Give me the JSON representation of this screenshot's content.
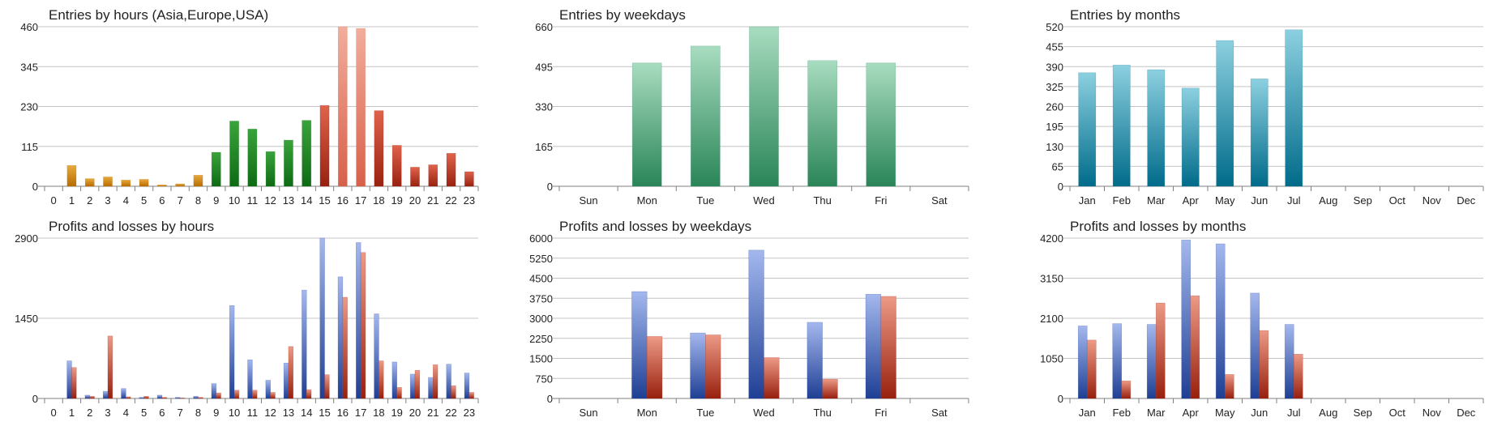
{
  "chart_data": [
    {
      "id": "entries_hours",
      "type": "bar",
      "title": "Entries by hours (Asia,Europe,USA)",
      "categories": [
        "0",
        "1",
        "2",
        "3",
        "4",
        "5",
        "6",
        "7",
        "8",
        "9",
        "10",
        "11",
        "12",
        "13",
        "14",
        "15",
        "16",
        "17",
        "18",
        "19",
        "20",
        "21",
        "22",
        "23"
      ],
      "values": [
        0,
        60,
        22,
        27,
        18,
        20,
        4,
        7,
        32,
        98,
        188,
        165,
        100,
        133,
        190,
        233,
        460,
        455,
        218,
        118,
        55,
        62,
        95,
        42
      ],
      "region_colors": [
        "asia",
        "asia",
        "asia",
        "asia",
        "asia",
        "asia",
        "asia",
        "asia",
        "asia",
        "europe",
        "europe",
        "europe",
        "europe",
        "europe",
        "europe",
        "usa",
        "usa",
        "usa",
        "usa",
        "usa",
        "usa",
        "usa",
        "usa",
        "usa"
      ],
      "yticks": [
        0,
        115,
        230,
        345,
        460
      ],
      "ylim": [
        0,
        460
      ],
      "grid": true
    },
    {
      "id": "entries_weekdays",
      "type": "bar",
      "title": "Entries by weekdays",
      "categories": [
        "Sun",
        "Mon",
        "Tue",
        "Wed",
        "Thu",
        "Fri",
        "Sat"
      ],
      "values": [
        0,
        510,
        580,
        660,
        520,
        510,
        0
      ],
      "yticks": [
        0,
        165,
        330,
        495,
        660
      ],
      "ylim": [
        0,
        660
      ],
      "grid": true
    },
    {
      "id": "entries_months",
      "type": "bar",
      "title": "Entries by months",
      "categories": [
        "Jan",
        "Feb",
        "Mar",
        "Apr",
        "May",
        "Jun",
        "Jul",
        "Aug",
        "Sep",
        "Oct",
        "Nov",
        "Dec"
      ],
      "values": [
        370,
        395,
        380,
        320,
        475,
        350,
        510,
        0,
        0,
        0,
        0,
        0
      ],
      "yticks": [
        0,
        65,
        130,
        195,
        260,
        325,
        390,
        455,
        520
      ],
      "ylim": [
        0,
        520
      ],
      "grid": true
    },
    {
      "id": "pl_hours",
      "type": "bar",
      "title": "Profits and losses by hours",
      "categories": [
        "0",
        "1",
        "2",
        "3",
        "4",
        "5",
        "6",
        "7",
        "8",
        "9",
        "10",
        "11",
        "12",
        "13",
        "14",
        "15",
        "16",
        "17",
        "18",
        "19",
        "20",
        "21",
        "22",
        "23"
      ],
      "series": [
        {
          "kind": "profit",
          "values": [
            0,
            680,
            60,
            130,
            180,
            20,
            60,
            20,
            40,
            270,
            1680,
            700,
            330,
            640,
            1960,
            2900,
            2200,
            2820,
            1530,
            660,
            440,
            380,
            620,
            460
          ]
        },
        {
          "kind": "loss",
          "values": [
            0,
            560,
            40,
            1130,
            30,
            40,
            20,
            10,
            20,
            100,
            150,
            150,
            110,
            940,
            160,
            430,
            1830,
            2640,
            680,
            200,
            510,
            610,
            230,
            110
          ]
        }
      ],
      "yticks": [
        0,
        1450,
        2900
      ],
      "ylim": [
        0,
        2900
      ],
      "grid": true
    },
    {
      "id": "pl_weekdays",
      "type": "bar",
      "title": "Profits and losses by weekdays",
      "categories": [
        "Sun",
        "Mon",
        "Tue",
        "Wed",
        "Thu",
        "Fri",
        "Sat"
      ],
      "series": [
        {
          "kind": "profit",
          "values": [
            0,
            4000,
            2450,
            5550,
            2850,
            3900,
            0
          ]
        },
        {
          "kind": "loss",
          "values": [
            0,
            2320,
            2380,
            1530,
            720,
            3820,
            0
          ]
        }
      ],
      "yticks": [
        0,
        750,
        1500,
        2250,
        3000,
        3750,
        4500,
        5250,
        6000
      ],
      "ylim": [
        0,
        6000
      ],
      "grid": true
    },
    {
      "id": "pl_months",
      "type": "bar",
      "title": "Profits and losses by months",
      "categories": [
        "Jan",
        "Feb",
        "Mar",
        "Apr",
        "May",
        "Jun",
        "Jul",
        "Aug",
        "Sep",
        "Oct",
        "Nov",
        "Dec"
      ],
      "series": [
        {
          "kind": "profit",
          "values": [
            1900,
            1960,
            1940,
            4150,
            4050,
            2760,
            1940,
            0,
            0,
            0,
            0,
            0
          ]
        },
        {
          "kind": "loss",
          "values": [
            1530,
            460,
            2500,
            2690,
            630,
            1780,
            1160,
            0,
            0,
            0,
            0,
            0
          ]
        }
      ],
      "yticks": [
        0,
        1050,
        2100,
        3150,
        4200
      ],
      "ylim": [
        0,
        4200
      ],
      "grid": true
    }
  ],
  "colors": {
    "asia": [
      "#e8a93c",
      "#b86c00"
    ],
    "europe": [
      "#3aa33a",
      "#0d6b14"
    ],
    "usa_hi": [
      "#f2ad9c",
      "#d8604a"
    ],
    "usa": [
      "#e0634c",
      "#98210f"
    ],
    "weekday_entries": [
      "#a8dcc0",
      "#2a8558"
    ],
    "month_entries": [
      "#8cd0e0",
      "#006b8a"
    ],
    "profit": [
      "#a4b8ee",
      "#1f3f94"
    ],
    "loss": [
      "#ec9a86",
      "#98200e"
    ],
    "grid": "#c4c4c4",
    "axis": "#808080",
    "text": "#222222"
  }
}
